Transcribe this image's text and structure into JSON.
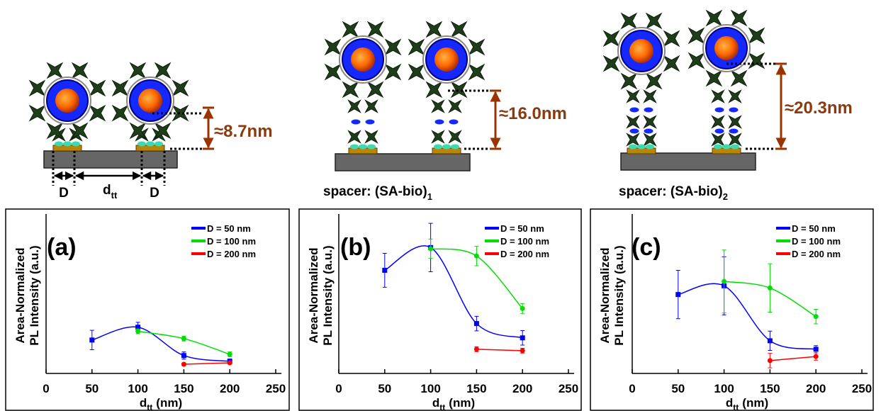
{
  "diagram": {
    "panels": [
      {
        "height": "≈8.7nm",
        "D_left": "D",
        "dtt": [
          "d",
          "tt"
        ],
        "D_right": "D"
      },
      {
        "height": "≈16.0nm",
        "spacer": [
          "spacer: (SA-bio)",
          "1"
        ]
      },
      {
        "height": "≈20.3nm",
        "spacer": [
          "spacer: (SA-bio)",
          "2"
        ]
      }
    ]
  },
  "chart_data": [
    {
      "type": "line",
      "panel_label": "(a)",
      "ylabel": [
        "Area-Normalized",
        "PL Intensity (a.u.)"
      ],
      "xlabel": [
        "d",
        "tt",
        "(nm)"
      ],
      "xlim": [
        0,
        250
      ],
      "xticks": [
        0,
        50,
        100,
        150,
        200,
        250
      ],
      "ylim": [
        0,
        6
      ],
      "series": [
        {
          "name": "D = 50 nm",
          "color": "#0000ff",
          "marker": "square",
          "x": [
            50,
            100,
            150,
            200
          ],
          "values": [
            1.38,
            1.91,
            0.74,
            0.5
          ],
          "errors": [
            0.4,
            0.2,
            0.15,
            0.1
          ]
        },
        {
          "name": "D = 100 nm",
          "color": "#00dd00",
          "marker": "circle",
          "x": [
            100,
            150,
            200
          ],
          "values": [
            1.74,
            1.44,
            0.79
          ],
          "errors": [
            0.1,
            0.1,
            0.1
          ]
        },
        {
          "name": "D = 200 nm",
          "color": "#ff0000",
          "marker": "circle",
          "x": [
            150,
            200
          ],
          "values": [
            0.38,
            0.44
          ],
          "errors": [
            0.05,
            0.05
          ]
        }
      ]
    },
    {
      "type": "line",
      "panel_label": "(b)",
      "ylabel": [
        "Area-Normalized",
        "PL Intensity (a.u.)"
      ],
      "xlabel": [
        "d",
        "tt",
        "(nm)"
      ],
      "xlim": [
        0,
        250
      ],
      "xticks": [
        0,
        50,
        100,
        150,
        200,
        250
      ],
      "ylim": [
        0,
        6
      ],
      "series": [
        {
          "name": "D = 50 nm",
          "color": "#0000ff",
          "marker": "square",
          "x": [
            50,
            100,
            150,
            200
          ],
          "values": [
            4.26,
            5.2,
            2.06,
            1.47
          ],
          "errors": [
            0.7,
            1.0,
            0.3,
            0.3
          ]
        },
        {
          "name": "D = 100 nm",
          "color": "#00dd00",
          "marker": "circle",
          "x": [
            100,
            150,
            200
          ],
          "values": [
            5.15,
            4.85,
            2.68
          ],
          "errors": [
            0.4,
            0.4,
            0.2
          ]
        },
        {
          "name": "D = 200 nm",
          "color": "#ff0000",
          "marker": "circle",
          "x": [
            150,
            200
          ],
          "values": [
            1.0,
            0.94
          ],
          "errors": [
            0.1,
            0.1
          ]
        }
      ]
    },
    {
      "type": "line",
      "panel_label": "(c)",
      "ylabel": [
        "Area-Normalized",
        "PL Intensity (a.u.)"
      ],
      "xlabel": [
        "d",
        "tt",
        "(nm)"
      ],
      "xlim": [
        0,
        250
      ],
      "xticks": [
        0,
        50,
        100,
        150,
        200,
        250
      ],
      "ylim": [
        0,
        6
      ],
      "series": [
        {
          "name": "D = 50 nm",
          "color": "#0000ff",
          "marker": "square",
          "x": [
            50,
            100,
            150,
            200
          ],
          "values": [
            3.26,
            3.62,
            1.35,
            1.0
          ],
          "errors": [
            1.0,
            1.2,
            0.4,
            0.15
          ]
        },
        {
          "name": "D = 100 nm",
          "color": "#00dd00",
          "marker": "circle",
          "x": [
            100,
            150,
            200
          ],
          "values": [
            3.8,
            3.53,
            2.35
          ],
          "errors": [
            1.3,
            1.0,
            0.3
          ]
        },
        {
          "name": "D = 200 nm",
          "color": "#ff0000",
          "marker": "circle",
          "x": [
            150,
            200
          ],
          "values": [
            0.53,
            0.7
          ],
          "errors": [
            0.3,
            0.15
          ]
        }
      ]
    }
  ]
}
